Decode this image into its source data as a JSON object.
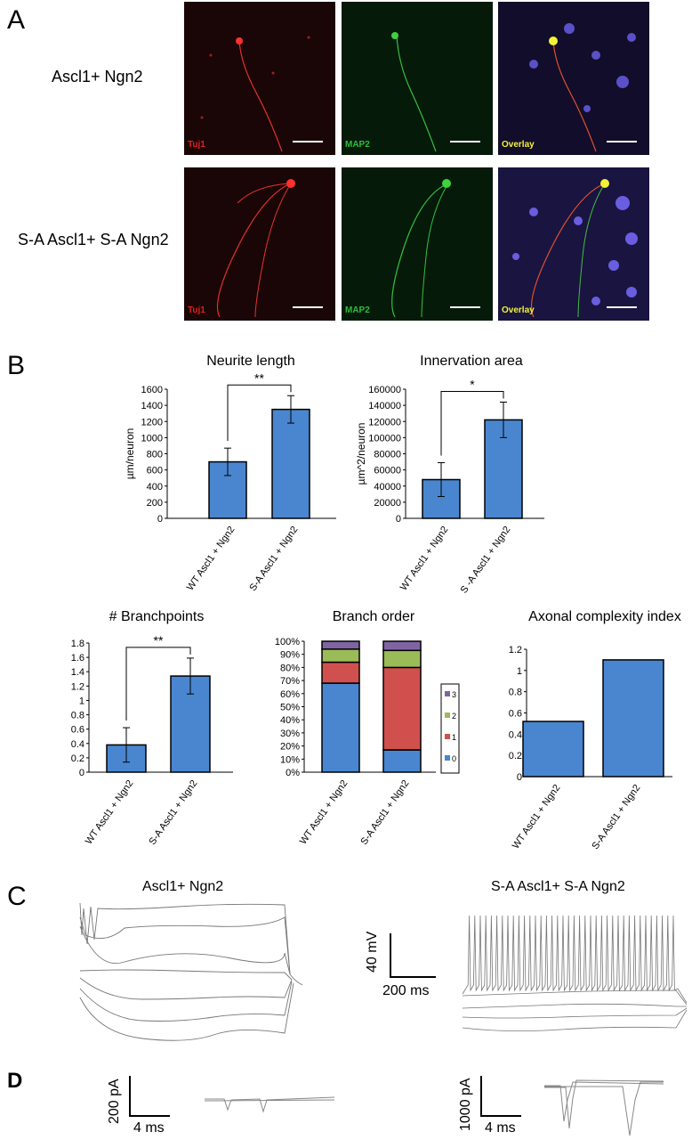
{
  "panels": {
    "A": "A",
    "B": "B",
    "C": "C",
    "D": "D"
  },
  "panelA": {
    "rows": [
      "Ascl1+ Ngn2",
      "S-A Ascl1+ S-A Ngn2"
    ],
    "channels": [
      "Tuj1",
      "MAP2",
      "Overlay"
    ],
    "colors": {
      "tuj1": "#e02020",
      "map2": "#2ebd3c",
      "overlay": "#f2f236",
      "nuclei": "#6a5de0"
    }
  },
  "chart_data": [
    {
      "type": "bar",
      "title": "Neurite length",
      "ylabel": "µm/neuron",
      "categories": [
        "WT Ascl1 + Ngn2",
        "S-A Ascl1 + Ngn2"
      ],
      "values": [
        700,
        1350
      ],
      "errors": [
        170,
        170
      ],
      "ylim": [
        0,
        1600
      ],
      "yticks": [
        "0",
        "200",
        "400",
        "600",
        "800",
        "1000",
        "1200",
        "1400",
        "1600"
      ],
      "significance": "**",
      "color": "#4a86cf"
    },
    {
      "type": "bar",
      "title": "Innervation area",
      "ylabel": "µm^2/neuron",
      "categories": [
        "WT Ascl1 + Ngn2",
        "S -A Ascl1 + Ngn2"
      ],
      "values": [
        48000,
        122000
      ],
      "errors": [
        21000,
        22000
      ],
      "ylim": [
        0,
        160000
      ],
      "yticks": [
        "0",
        "20000",
        "40000",
        "60000",
        "80000",
        "100000",
        "120000",
        "140000",
        "160000"
      ],
      "significance": "*",
      "color": "#4a86cf"
    },
    {
      "type": "bar",
      "title": "# Branchpoints",
      "ylabel": "",
      "categories": [
        "WT Ascl1 + Ngn2",
        "S-A Ascl1 + Ngn2"
      ],
      "values": [
        0.38,
        1.34
      ],
      "errors": [
        0.24,
        0.25
      ],
      "ylim": [
        0,
        1.8
      ],
      "yticks": [
        "0",
        "0.2",
        "0.4",
        "0.6",
        "0.8",
        "1",
        "1.2",
        "1.4",
        "1.6",
        "1.8"
      ],
      "significance": "**",
      "color": "#4a86cf"
    },
    {
      "type": "bar",
      "stacked": true,
      "title": "Branch order",
      "categories": [
        "WT Ascl1 + Ngn2",
        "S-A Ascl1 + Ngn2"
      ],
      "series": [
        {
          "name": "0",
          "values": [
            68,
            17
          ],
          "color": "#4a86cf"
        },
        {
          "name": "1",
          "values": [
            16,
            63
          ],
          "color": "#d0504d"
        },
        {
          "name": "2",
          "values": [
            10,
            13
          ],
          "color": "#9bbb59"
        },
        {
          "name": "3",
          "values": [
            6,
            7
          ],
          "color": "#8064a2"
        }
      ],
      "ylim": [
        0,
        100
      ],
      "yticks": [
        "0%",
        "10%",
        "20%",
        "30%",
        "40%",
        "50%",
        "60%",
        "70%",
        "80%",
        "90%",
        "100%"
      ],
      "legend": [
        "3",
        "2",
        "1",
        "0"
      ]
    },
    {
      "type": "bar",
      "title": "Axonal complexity index",
      "categories": [
        "WT Ascl1 + Ngn2",
        "S-A Ascl1 + Ngn2"
      ],
      "values": [
        0.52,
        1.1
      ],
      "ylim": [
        0,
        1.2
      ],
      "yticks": [
        "0",
        "0.2",
        "0.4",
        "0.6",
        "0.8",
        "1",
        "1.2"
      ],
      "color": "#4a86cf"
    }
  ],
  "panelC": {
    "left_title": "Ascl1+ Ngn2",
    "right_title": "S-A Ascl1+ S-A Ngn2",
    "scale_v": "40 mV",
    "scale_t": "200 ms"
  },
  "panelD": {
    "left_v": "200 pA",
    "left_t": "4 ms",
    "right_v": "1000 pA",
    "right_t": "4 ms"
  }
}
